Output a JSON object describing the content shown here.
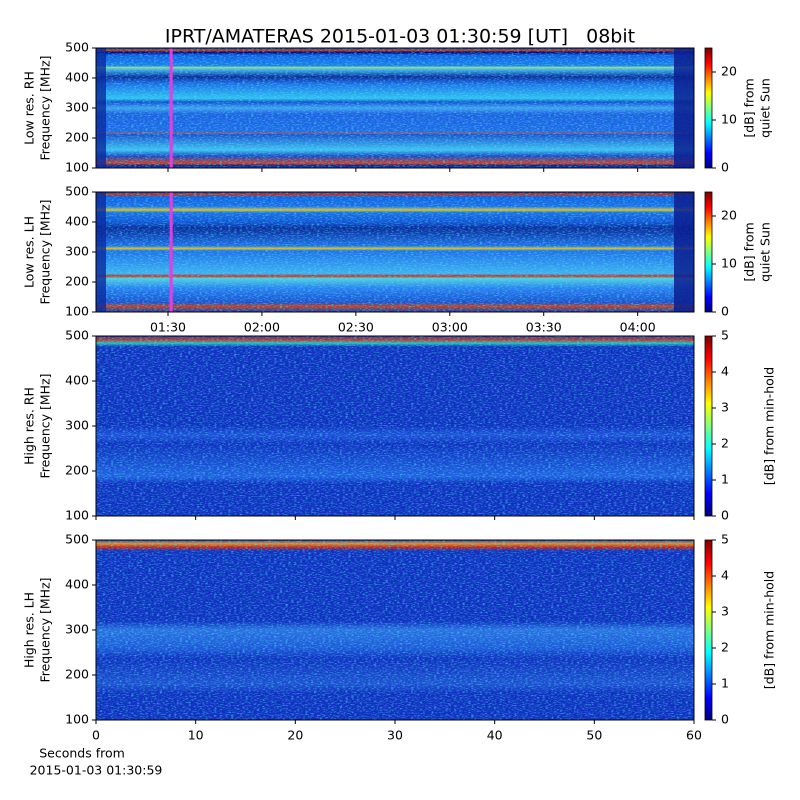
{
  "chart_data": [
    {
      "type": "heatmap",
      "title": "IPRT/AMATERAS 2015-01-03 01:30:59 [UT]   08bit",
      "ylabel": [
        "Low res. RH",
        "Frequency [MHz]"
      ],
      "ylim": [
        100,
        500
      ],
      "yticks": [
        100,
        200,
        300,
        400,
        500
      ],
      "xlim": [
        "01:07",
        "04:18"
      ],
      "xticks": [
        "01:30",
        "02:00",
        "02:30",
        "03:00",
        "03:30",
        "04:00"
      ],
      "show_xticklabels": false,
      "cursor_x": "01:31",
      "cursor_color": "#e040e0",
      "colorbar": {
        "label": [
          "[dB] from",
          "quiet Sun"
        ],
        "lim": [
          0,
          25
        ],
        "ticks": [
          0,
          10,
          20
        ]
      }
    },
    {
      "type": "heatmap",
      "ylabel": [
        "Low res. LH",
        "Frequency [MHz]"
      ],
      "ylim": [
        100,
        500
      ],
      "yticks": [
        100,
        200,
        300,
        400,
        500
      ],
      "xlim": [
        "01:07",
        "04:18"
      ],
      "xticks": [
        "01:30",
        "02:00",
        "02:30",
        "03:00",
        "03:30",
        "04:00"
      ],
      "show_xticklabels": true,
      "cursor_x": "01:31",
      "cursor_color": "#e040e0",
      "colorbar": {
        "label": [
          "[dB] from",
          "quiet Sun"
        ],
        "lim": [
          0,
          25
        ],
        "ticks": [
          0,
          10,
          20
        ]
      }
    },
    {
      "type": "heatmap",
      "ylabel": [
        "High res. RH",
        "Frequency [MHz]"
      ],
      "ylim": [
        100,
        500
      ],
      "yticks": [
        100,
        200,
        300,
        400,
        500
      ],
      "xlim": [
        0,
        60
      ],
      "xticks": [
        0,
        10,
        20,
        30,
        40,
        50,
        60
      ],
      "show_xticklabels": false,
      "colorbar": {
        "label": [
          "[dB] from min-hold"
        ],
        "lim": [
          0,
          5
        ],
        "ticks": [
          0,
          1,
          2,
          3,
          4,
          5
        ]
      }
    },
    {
      "type": "heatmap",
      "ylabel": [
        "High res. LH",
        "Frequency [MHz]"
      ],
      "ylim": [
        100,
        500
      ],
      "yticks": [
        100,
        200,
        300,
        400,
        500
      ],
      "xlim": [
        0,
        60
      ],
      "xticks": [
        0,
        10,
        20,
        30,
        40,
        50,
        60
      ],
      "show_xticklabels": true,
      "xlabel": [
        "Seconds from",
        "2015-01-03 01:30:59"
      ],
      "colorbar": {
        "label": [
          "[dB] from min-hold"
        ],
        "lim": [
          0,
          5
        ],
        "ticks": [
          0,
          1,
          2,
          3,
          4,
          5
        ]
      }
    }
  ]
}
